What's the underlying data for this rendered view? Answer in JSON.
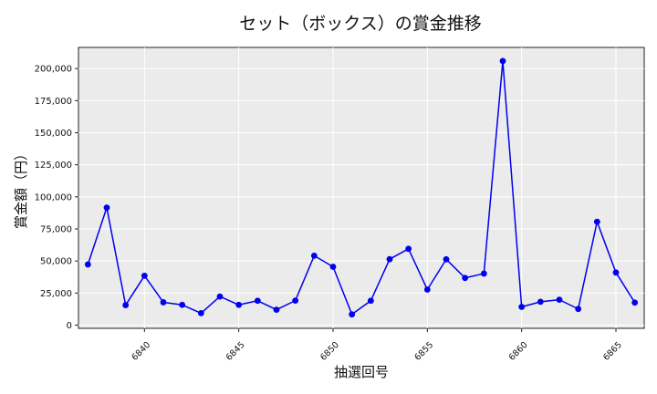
{
  "chart_data": {
    "type": "line",
    "title": "セット（ボックス）の賞金推移",
    "xlabel": "抽選回号",
    "ylabel": "賞金額（円）",
    "x": [
      6837,
      6838,
      6839,
      6840,
      6841,
      6842,
      6843,
      6844,
      6845,
      6846,
      6847,
      6848,
      6849,
      6850,
      6851,
      6852,
      6853,
      6854,
      6855,
      6856,
      6857,
      6858,
      6859,
      6860,
      6861,
      6862,
      6863,
      6864,
      6865,
      6866
    ],
    "series": [
      {
        "values": [
          47300,
          91600,
          15600,
          38500,
          17800,
          15800,
          9300,
          22300,
          15800,
          19000,
          12000,
          19100,
          54100,
          45500,
          8400,
          19000,
          51400,
          59500,
          27700,
          51300,
          36800,
          40200,
          205900,
          14200,
          18200,
          19800,
          12600,
          80600,
          41000,
          17600
        ],
        "color": "#0000ee"
      }
    ],
    "xlim": [
      6836.5,
      6866.5
    ],
    "ylim": [
      -2500,
      216500
    ],
    "xticks": [
      6840,
      6845,
      6850,
      6855,
      6860,
      6865
    ],
    "xtick_labels": [
      "6840",
      "6845",
      "6850",
      "6855",
      "6860",
      "6865"
    ],
    "yticks": [
      0,
      25000,
      50000,
      75000,
      100000,
      125000,
      150000,
      175000,
      200000
    ],
    "ytick_labels": [
      "0",
      "25,000",
      "50,000",
      "75,000",
      "100,000",
      "125,000",
      "150,000",
      "175,000",
      "200,000"
    ],
    "grid": true,
    "legend": "none",
    "plot_background": "#ebebeb"
  }
}
